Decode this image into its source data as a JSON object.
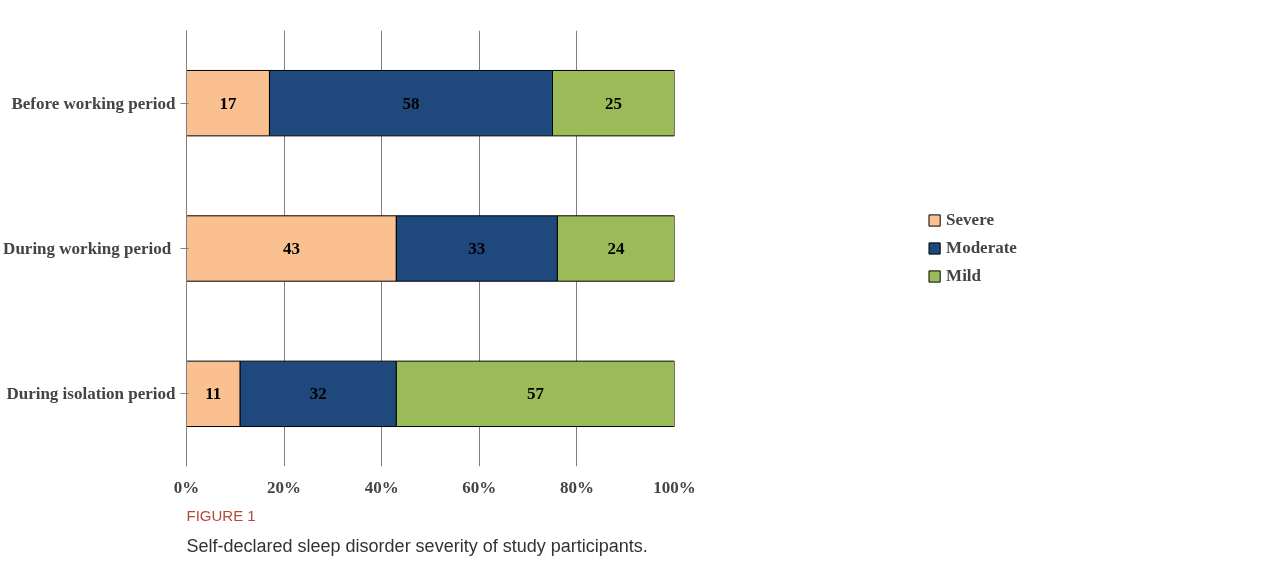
{
  "chart_data": {
    "type": "bar",
    "orientation": "horizontal",
    "stacked": true,
    "categories": [
      "Before working period",
      "During  working period",
      "During isolation period"
    ],
    "series": [
      {
        "name": "Severe",
        "color": "#fac090",
        "values": [
          17,
          43,
          11
        ]
      },
      {
        "name": "Moderate",
        "color": "#1f497d",
        "values": [
          58,
          33,
          32
        ]
      },
      {
        "name": "Mild",
        "color": "#9bbb59",
        "values": [
          25,
          24,
          57
        ]
      }
    ],
    "xlim": [
      0,
      100
    ],
    "xticks": [
      {
        "value": 0,
        "label": "0%"
      },
      {
        "value": 20,
        "label": "20%"
      },
      {
        "value": 40,
        "label": "40%"
      },
      {
        "value": 60,
        "label": "60%"
      },
      {
        "value": 80,
        "label": "80%"
      },
      {
        "value": 100,
        "label": "100%"
      }
    ],
    "data_labels": true,
    "grid": "x",
    "legend": "right",
    "annotations": [
      "FIGURE 1",
      "Self-declared sleep disorder severity of study participants."
    ]
  }
}
